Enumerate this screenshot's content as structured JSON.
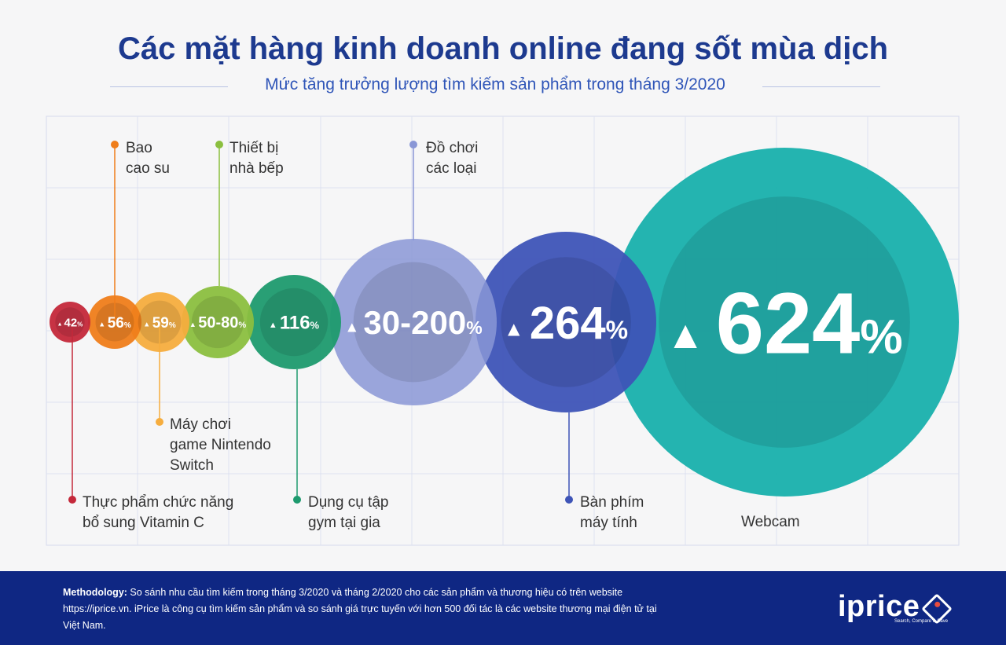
{
  "title": "Các mặt hàng kinh doanh online đang sốt mùa dịch",
  "subtitle": "Mức tăng trưởng lượng tìm kiếm sản phẩm trong tháng 3/2020",
  "chart_data": {
    "type": "bubble",
    "title": "Các mặt hàng kinh doanh online đang sốt mùa dịch",
    "subtitle": "Mức tăng trưởng lượng tìm kiếm sản phẩm trong tháng 3/2020",
    "categories": [
      "Thực phẩm chức năng bổ sung Vitamin C",
      "Bao cao su",
      "Máy chơi game Nintendo Switch",
      "Thiết bị nhà bếp",
      "Dụng cụ tập gym tại gia",
      "Đồ chơi các loại",
      "Bàn phím máy tính",
      "Webcam"
    ],
    "values": [
      42,
      56,
      59,
      80,
      116,
      200,
      264,
      624
    ],
    "labels": [
      "42",
      "56",
      "59",
      "50-80",
      "116",
      "30-200",
      "264",
      "624"
    ],
    "unit": "%",
    "colors": [
      "#c4283a",
      "#ef7d1a",
      "#f6ad3e",
      "#8bbf3f",
      "#1e9a6e",
      "#8a97d6",
      "#3e54b7",
      "#18b0ac"
    ],
    "grid": true,
    "legend": "labels with leader lines"
  },
  "items": [
    {
      "line1": "Thực phẩm chức năng",
      "line2": "bổ sung Vitamin C",
      "line3": "",
      "value_label": "42",
      "color": "#c4283a"
    },
    {
      "line1": "Bao",
      "line2": "cao su",
      "line3": "",
      "value_label": "56",
      "color": "#ef7d1a"
    },
    {
      "line1": "Máy chơi",
      "line2": "game Nintendo",
      "line3": "Switch",
      "value_label": "59",
      "color": "#f6ad3e"
    },
    {
      "line1": "Thiết bị",
      "line2": "nhà bếp",
      "line3": "",
      "value_label": "50-80",
      "color": "#8bbf3f"
    },
    {
      "line1": "Dụng cụ tập",
      "line2": "gym tại gia",
      "line3": "",
      "value_label": "116",
      "color": "#1e9a6e"
    },
    {
      "line1": "Đồ chơi",
      "line2": "các loại",
      "line3": "",
      "value_label": "30-200",
      "color": "#8a97d6"
    },
    {
      "line1": "Bàn phím",
      "line2": "máy tính",
      "line3": "",
      "value_label": "264",
      "color": "#3e54b7"
    },
    {
      "line1": "Webcam",
      "line2": "",
      "line3": "",
      "value_label": "624",
      "color": "#18b0ac"
    }
  ],
  "percent_sign": "%",
  "up_arrow": "▲",
  "footer": {
    "methodology_label": "Methodology:",
    "methodology_text": " So sánh nhu cầu tìm kiếm trong tháng 3/2020 và tháng 2/2020 cho các sản phẩm và thương hiệu có trên website https://iprice.vn. iPrice là công cụ tìm kiếm sản phẩm và so sánh giá trực tuyến với hơn 500 đối tác là các website thương mại điện tử tại Việt Nam.",
    "logo_text": "iprice",
    "logo_tagline": "Search, Compare & Save"
  }
}
